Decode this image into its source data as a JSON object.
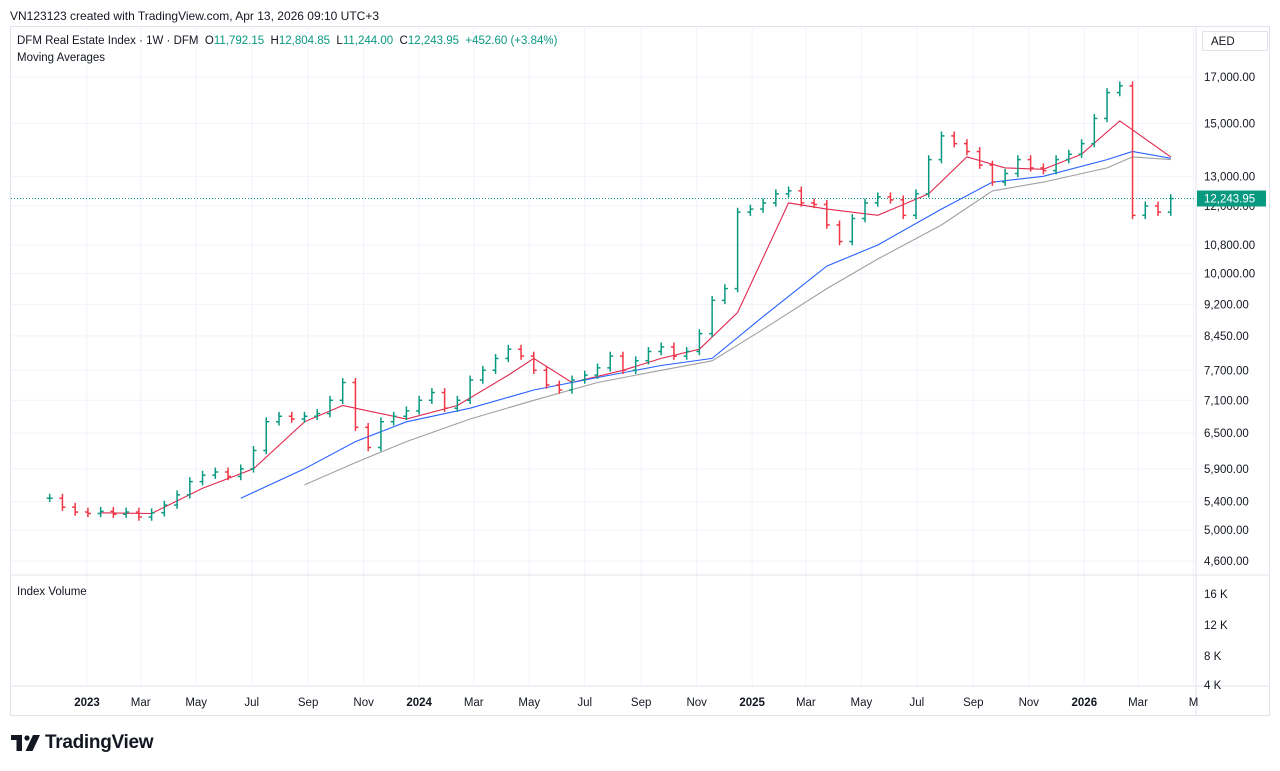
{
  "header": {
    "credit": "VN123123 created with TradingView.com, Apr 13, 2026 09:10 UTC+3"
  },
  "legend": {
    "symbol": "DFM Real Estate Index · 1W · DFM",
    "o_label": "O",
    "o_value": "11,792.15",
    "h_label": "H",
    "h_value": "12,804.85",
    "l_label": "L",
    "l_value": "11,244.00",
    "c_label": "C",
    "c_value": "12,243.95",
    "change": "+452.60 (+3.84%)",
    "indicator": "Moving Averages",
    "volume": "Index Volume"
  },
  "currency": "AED",
  "brand": {
    "name": "TradingView",
    "icon": "tradingview-logo-icon"
  },
  "colors": {
    "up": "#089981",
    "down": "#f23645",
    "ma_short": "#e0294f",
    "ma_mid": "#2962ff",
    "ma_long": "#a0a0a0",
    "last_price_bg": "#089981"
  },
  "chart_data": {
    "type": "line",
    "interval": "1W",
    "scale": "log",
    "grid": true,
    "y_ticks": [
      "17,000.00",
      "15,000.00",
      "13,000.00",
      "12,000.00",
      "10,800.00",
      "10,000.00",
      "9,200.00",
      "8,450.00",
      "7,700.00",
      "7,100.00",
      "6,500.00",
      "5,900.00",
      "5,400.00",
      "5,000.00",
      "4,600.00"
    ],
    "y_tick_values": [
      17000,
      15000,
      13000,
      12000,
      10800,
      10000,
      9200,
      8450,
      7700,
      7100,
      6500,
      5900,
      5400,
      5000,
      4600
    ],
    "last_price_label": "12,243.95",
    "last_price": 12243.95,
    "x_ticks": [
      {
        "label": "2023",
        "date": "2023-01-01",
        "year": true
      },
      {
        "label": "Mar",
        "date": "2023-03-01"
      },
      {
        "label": "May",
        "date": "2023-05-01"
      },
      {
        "label": "Jul",
        "date": "2023-07-01"
      },
      {
        "label": "Sep",
        "date": "2023-09-01"
      },
      {
        "label": "Nov",
        "date": "2023-11-01"
      },
      {
        "label": "2024",
        "date": "2024-01-01",
        "year": true
      },
      {
        "label": "Mar",
        "date": "2024-03-01"
      },
      {
        "label": "May",
        "date": "2024-05-01"
      },
      {
        "label": "Jul",
        "date": "2024-07-01"
      },
      {
        "label": "Sep",
        "date": "2024-09-01"
      },
      {
        "label": "Nov",
        "date": "2024-11-01"
      },
      {
        "label": "2025",
        "date": "2025-01-01",
        "year": true
      },
      {
        "label": "Mar",
        "date": "2025-03-01"
      },
      {
        "label": "May",
        "date": "2025-05-01"
      },
      {
        "label": "Jul",
        "date": "2025-07-01"
      },
      {
        "label": "Sep",
        "date": "2025-09-01"
      },
      {
        "label": "Nov",
        "date": "2025-11-01"
      },
      {
        "label": "2026",
        "date": "2026-01-01",
        "year": true
      },
      {
        "label": "Mar",
        "date": "2026-03-01"
      },
      {
        "label": "M",
        "date": "2026-05-01"
      }
    ],
    "volume_ticks": [
      "16 K",
      "12 K",
      "8 K",
      "4 K"
    ],
    "close_series": [
      {
        "date": "2022-11-21",
        "close": 5450
      },
      {
        "date": "2022-12-05",
        "close": 5320
      },
      {
        "date": "2022-12-19",
        "close": 5250
      },
      {
        "date": "2023-01-02",
        "close": 5230
      },
      {
        "date": "2023-01-16",
        "close": 5260
      },
      {
        "date": "2023-01-30",
        "close": 5220
      },
      {
        "date": "2023-02-13",
        "close": 5250
      },
      {
        "date": "2023-02-27",
        "close": 5180
      },
      {
        "date": "2023-03-13",
        "close": 5240
      },
      {
        "date": "2023-03-27",
        "close": 5350
      },
      {
        "date": "2023-04-10",
        "close": 5500
      },
      {
        "date": "2023-04-24",
        "close": 5700
      },
      {
        "date": "2023-05-08",
        "close": 5800
      },
      {
        "date": "2023-05-22",
        "close": 5850
      },
      {
        "date": "2023-06-05",
        "close": 5780
      },
      {
        "date": "2023-06-19",
        "close": 5900
      },
      {
        "date": "2023-07-03",
        "close": 6200
      },
      {
        "date": "2023-07-17",
        "close": 6700
      },
      {
        "date": "2023-07-31",
        "close": 6800
      },
      {
        "date": "2023-08-14",
        "close": 6750
      },
      {
        "date": "2023-08-28",
        "close": 6800
      },
      {
        "date": "2023-09-11",
        "close": 6850
      },
      {
        "date": "2023-09-25",
        "close": 7100
      },
      {
        "date": "2023-10-09",
        "close": 7450
      },
      {
        "date": "2023-10-23",
        "close": 6600
      },
      {
        "date": "2023-11-06",
        "close": 6250
      },
      {
        "date": "2023-11-20",
        "close": 6700
      },
      {
        "date": "2023-12-04",
        "close": 6800
      },
      {
        "date": "2023-12-18",
        "close": 6900
      },
      {
        "date": "2024-01-01",
        "close": 7100
      },
      {
        "date": "2024-01-15",
        "close": 7250
      },
      {
        "date": "2024-01-29",
        "close": 6950
      },
      {
        "date": "2024-02-12",
        "close": 7100
      },
      {
        "date": "2024-02-26",
        "close": 7500
      },
      {
        "date": "2024-03-11",
        "close": 7700
      },
      {
        "date": "2024-03-25",
        "close": 7950
      },
      {
        "date": "2024-04-08",
        "close": 8150
      },
      {
        "date": "2024-04-22",
        "close": 8000
      },
      {
        "date": "2024-05-06",
        "close": 7700
      },
      {
        "date": "2024-05-20",
        "close": 7400
      },
      {
        "date": "2024-06-03",
        "close": 7300
      },
      {
        "date": "2024-06-17",
        "close": 7500
      },
      {
        "date": "2024-07-01",
        "close": 7600
      },
      {
        "date": "2024-07-15",
        "close": 7750
      },
      {
        "date": "2024-07-29",
        "close": 8000
      },
      {
        "date": "2024-08-12",
        "close": 7700
      },
      {
        "date": "2024-08-26",
        "close": 7900
      },
      {
        "date": "2024-09-09",
        "close": 8100
      },
      {
        "date": "2024-09-23",
        "close": 8200
      },
      {
        "date": "2024-10-07",
        "close": 8000
      },
      {
        "date": "2024-10-21",
        "close": 8100
      },
      {
        "date": "2024-11-04",
        "close": 8500
      },
      {
        "date": "2024-11-18",
        "close": 9300
      },
      {
        "date": "2024-12-02",
        "close": 9600
      },
      {
        "date": "2024-12-16",
        "close": 11800
      },
      {
        "date": "2024-12-30",
        "close": 11900
      },
      {
        "date": "2025-01-13",
        "close": 12100
      },
      {
        "date": "2025-01-27",
        "close": 12400
      },
      {
        "date": "2025-02-10",
        "close": 12500
      },
      {
        "date": "2025-02-24",
        "close": 12100
      },
      {
        "date": "2025-03-10",
        "close": 12050
      },
      {
        "date": "2025-03-24",
        "close": 11400
      },
      {
        "date": "2025-04-07",
        "close": 10900
      },
      {
        "date": "2025-04-21",
        "close": 11600
      },
      {
        "date": "2025-05-05",
        "close": 12100
      },
      {
        "date": "2025-05-19",
        "close": 12300
      },
      {
        "date": "2025-06-02",
        "close": 12200
      },
      {
        "date": "2025-06-16",
        "close": 11700
      },
      {
        "date": "2025-06-30",
        "close": 12400
      },
      {
        "date": "2025-07-14",
        "close": 13600
      },
      {
        "date": "2025-07-28",
        "close": 14500
      },
      {
        "date": "2025-08-11",
        "close": 14200
      },
      {
        "date": "2025-08-25",
        "close": 13900
      },
      {
        "date": "2025-09-08",
        "close": 13400
      },
      {
        "date": "2025-09-22",
        "close": 12800
      },
      {
        "date": "2025-10-06",
        "close": 13100
      },
      {
        "date": "2025-10-20",
        "close": 13600
      },
      {
        "date": "2025-11-03",
        "close": 13300
      },
      {
        "date": "2025-11-17",
        "close": 13200
      },
      {
        "date": "2025-12-01",
        "close": 13600
      },
      {
        "date": "2025-12-15",
        "close": 13800
      },
      {
        "date": "2025-12-29",
        "close": 14200
      },
      {
        "date": "2026-01-12",
        "close": 15200
      },
      {
        "date": "2026-01-26",
        "close": 16300
      },
      {
        "date": "2026-02-09",
        "close": 16600
      },
      {
        "date": "2026-02-23",
        "close": 11700
      },
      {
        "date": "2026-03-09",
        "close": 12000
      },
      {
        "date": "2026-03-23",
        "close": 11800
      },
      {
        "date": "2026-04-06",
        "close": 12243.95
      }
    ],
    "series": [
      {
        "values": [
          {
            "date": "2023-01-16",
            "value": 5240
          },
          {
            "date": "2023-03-13",
            "value": 5230
          },
          {
            "date": "2023-05-08",
            "value": 5600
          },
          {
            "date": "2023-07-03",
            "value": 5900
          },
          {
            "date": "2023-08-28",
            "value": 6700
          },
          {
            "date": "2023-10-09",
            "value": 7000
          },
          {
            "date": "2023-11-06",
            "value": 6900
          },
          {
            "date": "2023-12-18",
            "value": 6750
          },
          {
            "date": "2024-02-12",
            "value": 7000
          },
          {
            "date": "2024-04-08",
            "value": 7600
          },
          {
            "date": "2024-05-06",
            "value": 7950
          },
          {
            "date": "2024-06-17",
            "value": 7450
          },
          {
            "date": "2024-08-12",
            "value": 7700
          },
          {
            "date": "2024-09-23",
            "value": 7950
          },
          {
            "date": "2024-11-04",
            "value": 8150
          },
          {
            "date": "2024-12-16",
            "value": 9000
          },
          {
            "date": "2025-02-10",
            "value": 12100
          },
          {
            "date": "2025-03-24",
            "value": 11900
          },
          {
            "date": "2025-05-19",
            "value": 11700
          },
          {
            "date": "2025-07-14",
            "value": 12400
          },
          {
            "date": "2025-08-25",
            "value": 13700
          },
          {
            "date": "2025-10-06",
            "value": 13300
          },
          {
            "date": "2025-11-17",
            "value": 13250
          },
          {
            "date": "2025-12-29",
            "value": 13800
          },
          {
            "date": "2026-02-09",
            "value": 15100
          },
          {
            "date": "2026-04-06",
            "value": 13700
          }
        ]
      },
      {
        "values": [
          {
            "date": "2023-06-19",
            "value": 5450
          },
          {
            "date": "2023-08-28",
            "value": 5900
          },
          {
            "date": "2023-10-23",
            "value": 6350
          },
          {
            "date": "2023-12-18",
            "value": 6700
          },
          {
            "date": "2024-02-26",
            "value": 6950
          },
          {
            "date": "2024-05-06",
            "value": 7300
          },
          {
            "date": "2024-07-15",
            "value": 7550
          },
          {
            "date": "2024-09-23",
            "value": 7800
          },
          {
            "date": "2024-11-18",
            "value": 7950
          },
          {
            "date": "2025-01-13",
            "value": 8900
          },
          {
            "date": "2025-03-24",
            "value": 10200
          },
          {
            "date": "2025-05-19",
            "value": 10800
          },
          {
            "date": "2025-07-28",
            "value": 11900
          },
          {
            "date": "2025-09-22",
            "value": 12800
          },
          {
            "date": "2025-11-17",
            "value": 13000
          },
          {
            "date": "2026-01-26",
            "value": 13600
          },
          {
            "date": "2026-02-23",
            "value": 13900
          },
          {
            "date": "2026-04-06",
            "value": 13650
          }
        ]
      },
      {
        "values": [
          {
            "date": "2023-08-28",
            "value": 5650
          },
          {
            "date": "2023-10-23",
            "value": 6000
          },
          {
            "date": "2023-12-18",
            "value": 6350
          },
          {
            "date": "2024-02-26",
            "value": 6750
          },
          {
            "date": "2024-05-06",
            "value": 7100
          },
          {
            "date": "2024-07-15",
            "value": 7450
          },
          {
            "date": "2024-09-23",
            "value": 7700
          },
          {
            "date": "2024-11-18",
            "value": 7900
          },
          {
            "date": "2025-01-13",
            "value": 8600
          },
          {
            "date": "2025-03-24",
            "value": 9600
          },
          {
            "date": "2025-05-19",
            "value": 10400
          },
          {
            "date": "2025-07-28",
            "value": 11400
          },
          {
            "date": "2025-09-22",
            "value": 12500
          },
          {
            "date": "2025-11-17",
            "value": 12800
          },
          {
            "date": "2026-01-26",
            "value": 13300
          },
          {
            "date": "2026-02-23",
            "value": 13700
          },
          {
            "date": "2026-04-06",
            "value": 13600
          }
        ]
      }
    ]
  }
}
